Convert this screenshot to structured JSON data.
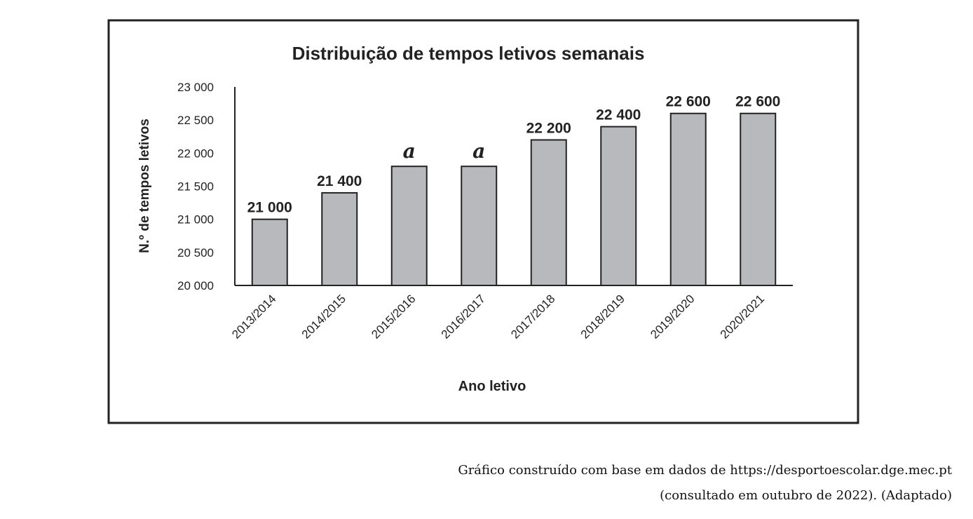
{
  "chart_data": {
    "type": "bar",
    "title": "Distribuição de tempos letivos semanais",
    "xlabel": "Ano letivo",
    "ylabel": "N.º de tempos letivos",
    "categories": [
      "2013/2014",
      "2014/2015",
      "2015/2016",
      "2016/2017",
      "2017/2018",
      "2018/2019",
      "2019/2020",
      "2020/2021"
    ],
    "values": [
      21000,
      21400,
      21800,
      21800,
      22200,
      22400,
      22600,
      22600
    ],
    "data_labels": [
      "21 000",
      "21 400",
      "a",
      "a",
      "22 200",
      "22 400",
      "22 600",
      "22 600"
    ],
    "ylim": [
      20000,
      23000
    ],
    "yticks": [
      20000,
      20500,
      21000,
      21500,
      22000,
      22500,
      23000
    ],
    "ytick_labels": [
      "20 000",
      "20 500",
      "21 000",
      "21 500",
      "22 000",
      "22 500",
      "23 000"
    ],
    "grid": false,
    "bar_color": "#b8b9bc"
  },
  "caption": {
    "line1": "Gráfico construído com base em dados de https://desportoescolar.dge.mec.pt",
    "line2": "(consultado em outubro de 2022). (Adaptado)"
  }
}
